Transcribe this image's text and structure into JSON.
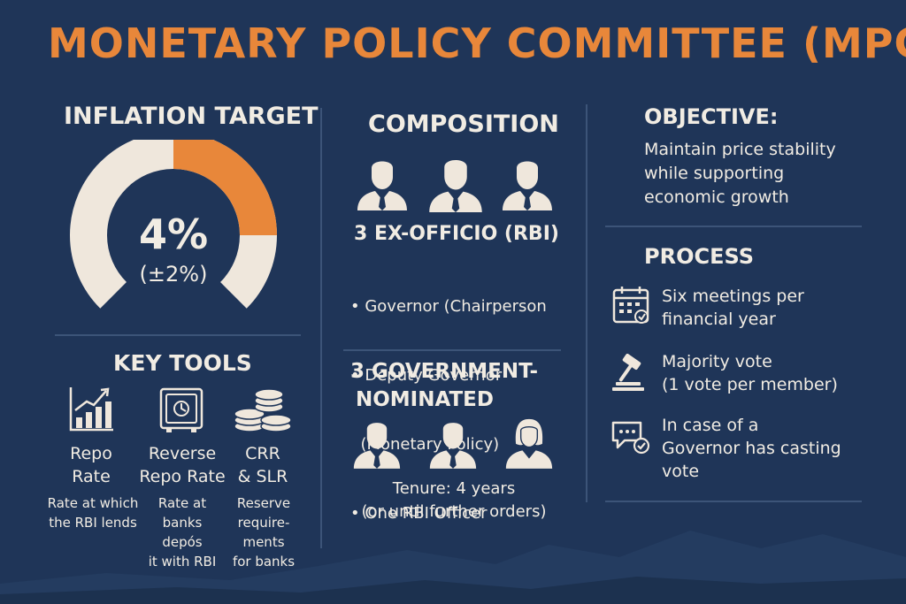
{
  "title": "MONETARY POLICY COMMITTEE (MPC)",
  "inflation": {
    "heading": "INFLATION TARGET",
    "value": "4%",
    "band": "(±2%)",
    "gauge_highlight_fraction": 0.25
  },
  "key_tools": {
    "heading": "KEY TOOLS",
    "items": [
      {
        "icon": "bar-chart-icon",
        "title_lines": [
          "Repo",
          "Rate"
        ],
        "desc_lines": [
          "Rate at which",
          "the RBI lends"
        ]
      },
      {
        "icon": "safe-icon",
        "title_lines": [
          "Reverse",
          "Repo Rate"
        ],
        "desc_lines": [
          "Rate at",
          "banks depós",
          "it with RBI"
        ]
      },
      {
        "icon": "coins-icon",
        "title_lines": [
          "CRR",
          "& SLR"
        ],
        "desc_lines": [
          "Reserve",
          "require-",
          "ments",
          "for banks"
        ]
      }
    ]
  },
  "composition": {
    "heading": "COMPOSITION",
    "ex_officio": {
      "heading": "3 EX-OFFICIO (RBI)",
      "items": [
        "• Governor (Chairperson",
        "• Deputy Governor",
        "  (Monetary Policy)",
        "• One RBI Officer"
      ]
    },
    "government": {
      "heading_lines": [
        "3 GOVERNMENT-",
        "NOMINATED"
      ],
      "tenure_lines": [
        "Tenure: 4 years",
        "(or until further orders)"
      ]
    }
  },
  "objective": {
    "heading": "OBJECTIVE:",
    "lines": [
      "Maintain price stability",
      "while supporting",
      "economic growth"
    ]
  },
  "process": {
    "heading": "PROCESS",
    "items": [
      {
        "icon": "calendar-icon",
        "lines": [
          "Six meetings per",
          "financial year"
        ]
      },
      {
        "icon": "gavel-icon",
        "lines": [
          "Majority vote",
          "(1 vote per member)"
        ]
      },
      {
        "icon": "chat-check-icon",
        "lines": [
          "In case of a",
          "Governor has casting",
          "vote"
        ]
      }
    ]
  },
  "colors": {
    "background": "#1f3558",
    "accent": "#e8873a",
    "text": "#f1ece3"
  }
}
